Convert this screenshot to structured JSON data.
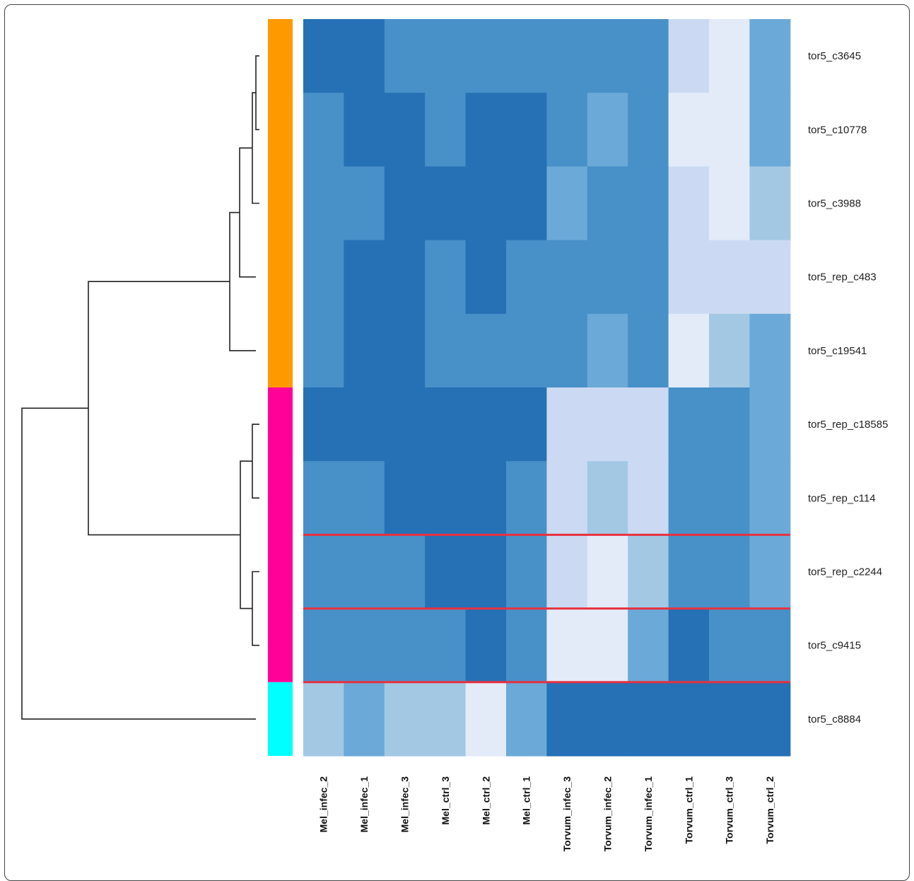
{
  "chart_data": {
    "type": "heatmap",
    "title": "",
    "xlabel": "",
    "ylabel": "",
    "columns": [
      "Mel_infec_2",
      "Mel_infec_1",
      "Mel_infec_3",
      "Mel_ctrl_3",
      "Mel_ctrl_2",
      "Mel_ctrl_1",
      "Torvum_infec_3",
      "Torvum_infec_2",
      "Torvum_infec_1",
      "Torvum_ctrl_1",
      "Torvum_ctrl_3",
      "Torvum_ctrl_2"
    ],
    "rows": [
      "tor5_c3645",
      "tor5_c10778",
      "tor5_c3988",
      "tor5_rep_c483",
      "tor5_c19541",
      "tor5_rep_c18585",
      "tor5_rep_c114",
      "tor5_rep_c2244",
      "tor5_c9415",
      "tor5_c8884"
    ],
    "levels": [
      [
        5,
        5,
        4,
        4,
        4,
        4,
        4,
        4,
        4,
        1,
        0,
        3
      ],
      [
        4,
        5,
        5,
        4,
        5,
        5,
        4,
        3,
        4,
        0,
        0,
        3
      ],
      [
        4,
        4,
        5,
        5,
        5,
        5,
        3,
        4,
        4,
        1,
        0,
        2
      ],
      [
        4,
        5,
        5,
        4,
        5,
        4,
        4,
        4,
        4,
        1,
        1,
        1
      ],
      [
        4,
        5,
        5,
        4,
        4,
        4,
        4,
        3,
        4,
        0,
        2,
        3
      ],
      [
        5,
        5,
        5,
        5,
        5,
        5,
        1,
        1,
        1,
        4,
        4,
        3
      ],
      [
        4,
        4,
        5,
        5,
        5,
        4,
        1,
        2,
        1,
        4,
        4,
        3
      ],
      [
        4,
        4,
        4,
        5,
        5,
        4,
        1,
        0,
        2,
        4,
        4,
        3
      ],
      [
        4,
        4,
        4,
        4,
        5,
        4,
        0,
        0,
        3,
        5,
        4,
        4
      ],
      [
        2,
        3,
        2,
        2,
        0,
        3,
        5,
        5,
        5,
        5,
        5,
        5
      ]
    ],
    "level_colors": [
      "#e3ebf9",
      "#cbdaf2",
      "#a3c8e4",
      "#6ba9d8",
      "#4890c8",
      "#2670b5"
    ],
    "cluster_groups": [
      {
        "color": "#ff9900",
        "rows": [
          0,
          1,
          2,
          3,
          4
        ]
      },
      {
        "color": "#ff0099",
        "rows": [
          5,
          6,
          7,
          8
        ]
      },
      {
        "color": "#00ffff",
        "rows": [
          9
        ]
      }
    ],
    "highlight_separators_after_rows": [
      6,
      7,
      8
    ],
    "highlight_color": "#e8313f",
    "dendrogram": "hierarchical clustering of rows",
    "legend": "none"
  }
}
